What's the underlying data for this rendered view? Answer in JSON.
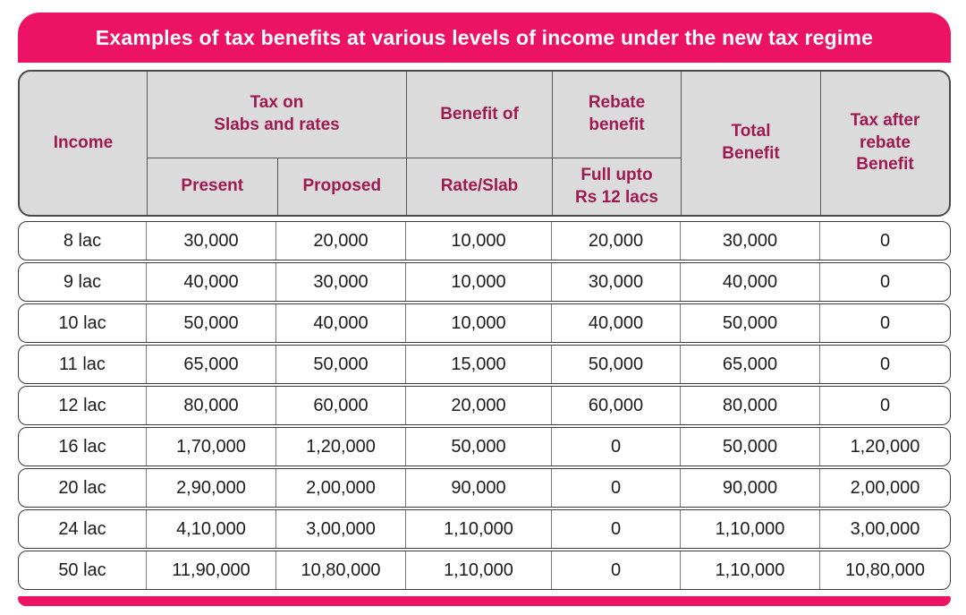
{
  "title": "Examples of tax benefits at various levels of income under the new tax regime",
  "colors": {
    "accent_pink": "#EC1365",
    "header_bg": "#DBDBDB",
    "header_text": "#9E1A52",
    "title_text": "#FFFFFF",
    "cell_text": "#1C1C1C",
    "row_border": "#3B3B3B",
    "header_border": "#4A4A4A",
    "divider": "#7A7A7A"
  },
  "chart_data": {
    "type": "table",
    "title": "Examples of tax benefits at various levels of income under the new tax regime",
    "header": {
      "income": "Income",
      "tax_group": "Tax on\nSlabs and rates",
      "present": "Present",
      "proposed": "Proposed",
      "benefit_of": "Benefit of",
      "rate_slab": "Rate/Slab",
      "rebate_benefit": "Rebate\nbenefit",
      "rebate_sub": "Full upto\nRs 12 lacs",
      "total_benefit": "Total\nBenefit",
      "tax_after_rebate": "Tax after\nrebate\nBenefit"
    },
    "columns": [
      "Income",
      "Present",
      "Proposed",
      "Rate/Slab",
      "Full upto Rs 12 lacs",
      "Total Benefit",
      "Tax after rebate Benefit"
    ],
    "rows": [
      [
        "8 lac",
        "30,000",
        "20,000",
        "10,000",
        "20,000",
        "30,000",
        "0"
      ],
      [
        "9 lac",
        "40,000",
        "30,000",
        "10,000",
        "30,000",
        "40,000",
        "0"
      ],
      [
        "10 lac",
        "50,000",
        "40,000",
        "10,000",
        "40,000",
        "50,000",
        "0"
      ],
      [
        "11 lac",
        "65,000",
        "50,000",
        "15,000",
        "50,000",
        "65,000",
        "0"
      ],
      [
        "12 lac",
        "80,000",
        "60,000",
        "20,000",
        "60,000",
        "80,000",
        "0"
      ],
      [
        "16 lac",
        "1,70,000",
        "1,20,000",
        "50,000",
        "0",
        "50,000",
        "1,20,000"
      ],
      [
        "20 lac",
        "2,90,000",
        "2,00,000",
        "90,000",
        "0",
        "90,000",
        "2,00,000"
      ],
      [
        "24 lac",
        "4,10,000",
        "3,00,000",
        "1,10,000",
        "0",
        "1,10,000",
        "3,00,000"
      ],
      [
        "50 lac",
        "11,90,000",
        "10,80,000",
        "1,10,000",
        "0",
        "1,10,000",
        "10,80,000"
      ]
    ]
  }
}
